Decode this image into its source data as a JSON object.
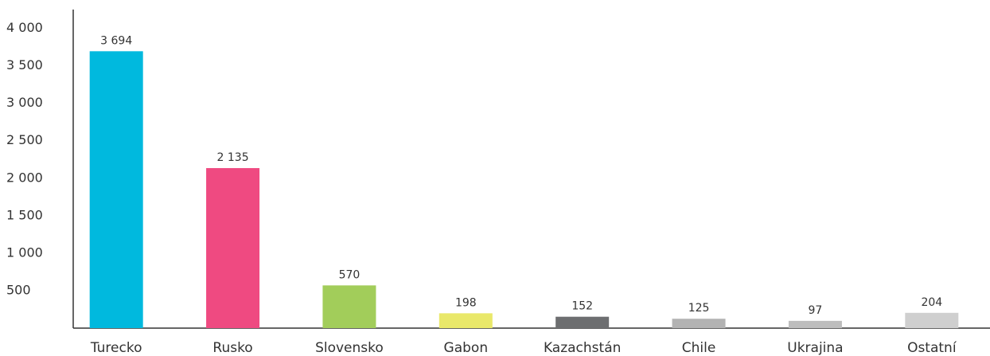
{
  "chart_data": {
    "type": "bar",
    "categories": [
      "Turecko",
      "Rusko",
      "Slovensko",
      "Gabon",
      "Kazachstán",
      "Chile",
      "Ukrajina",
      "Ostatní"
    ],
    "values": [
      3694,
      2135,
      570,
      198,
      152,
      125,
      97,
      204
    ],
    "value_labels": [
      "3 694",
      "2 135",
      "570",
      "198",
      "152",
      "125",
      "97",
      "204"
    ],
    "colors": [
      "#00b9de",
      "#ef4a81",
      "#a2cd5a",
      "#e9e86a",
      "#6d6e70",
      "#b3b3b3",
      "#bdbdbd",
      "#cfcfcf"
    ],
    "ylim": [
      0,
      4250
    ],
    "yticks": [
      500,
      {
        "value": 1000,
        "label": "1 000"
      },
      {
        "value": 1500,
        "label": "1 500"
      },
      {
        "value": 2000,
        "label": "2 000"
      },
      {
        "value": 2500,
        "label": "2 500"
      },
      {
        "value": 3000,
        "label": "3 000"
      },
      {
        "value": 3500,
        "label": "3 500"
      },
      {
        "value": 4000,
        "label": "4 000"
      }
    ],
    "grid": false
  }
}
